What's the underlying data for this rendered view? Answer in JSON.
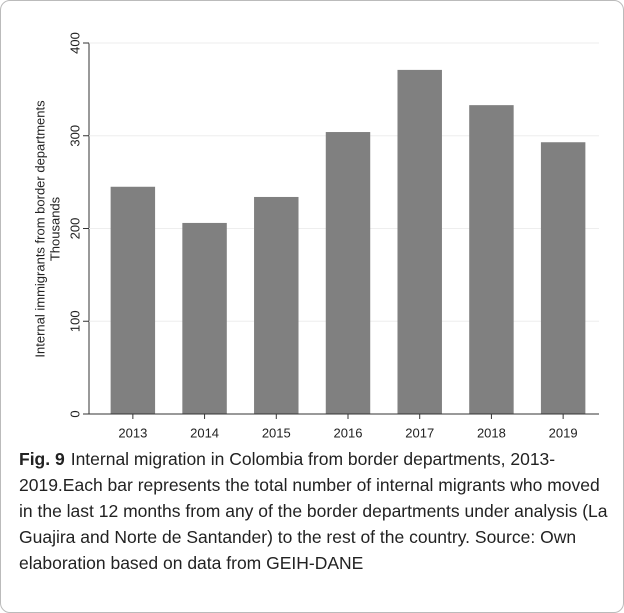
{
  "chart_data": {
    "type": "bar",
    "ylabel": "Internal immigrants from border departments",
    "ylabel_unit": "Thousands",
    "categories": [
      "2013",
      "2014",
      "2015",
      "2016",
      "2017",
      "2018",
      "2019"
    ],
    "values": [
      245,
      206,
      234,
      304,
      371,
      333,
      293
    ],
    "color": "#808080",
    "ylim": [
      0,
      400
    ],
    "yticks": [
      0,
      100,
      200,
      300,
      400
    ],
    "grid": true
  },
  "caption": {
    "label": "Fig. 9",
    "text": "Internal migration in Colombia from border departments, 2013-2019.Each bar represents the total number of internal migrants who moved in the last 12 months from any of the border departments under analysis (La Guajira and Norte de Santander) to the rest of the country. Source: Own elaboration based on data from GEIH-DANE"
  }
}
